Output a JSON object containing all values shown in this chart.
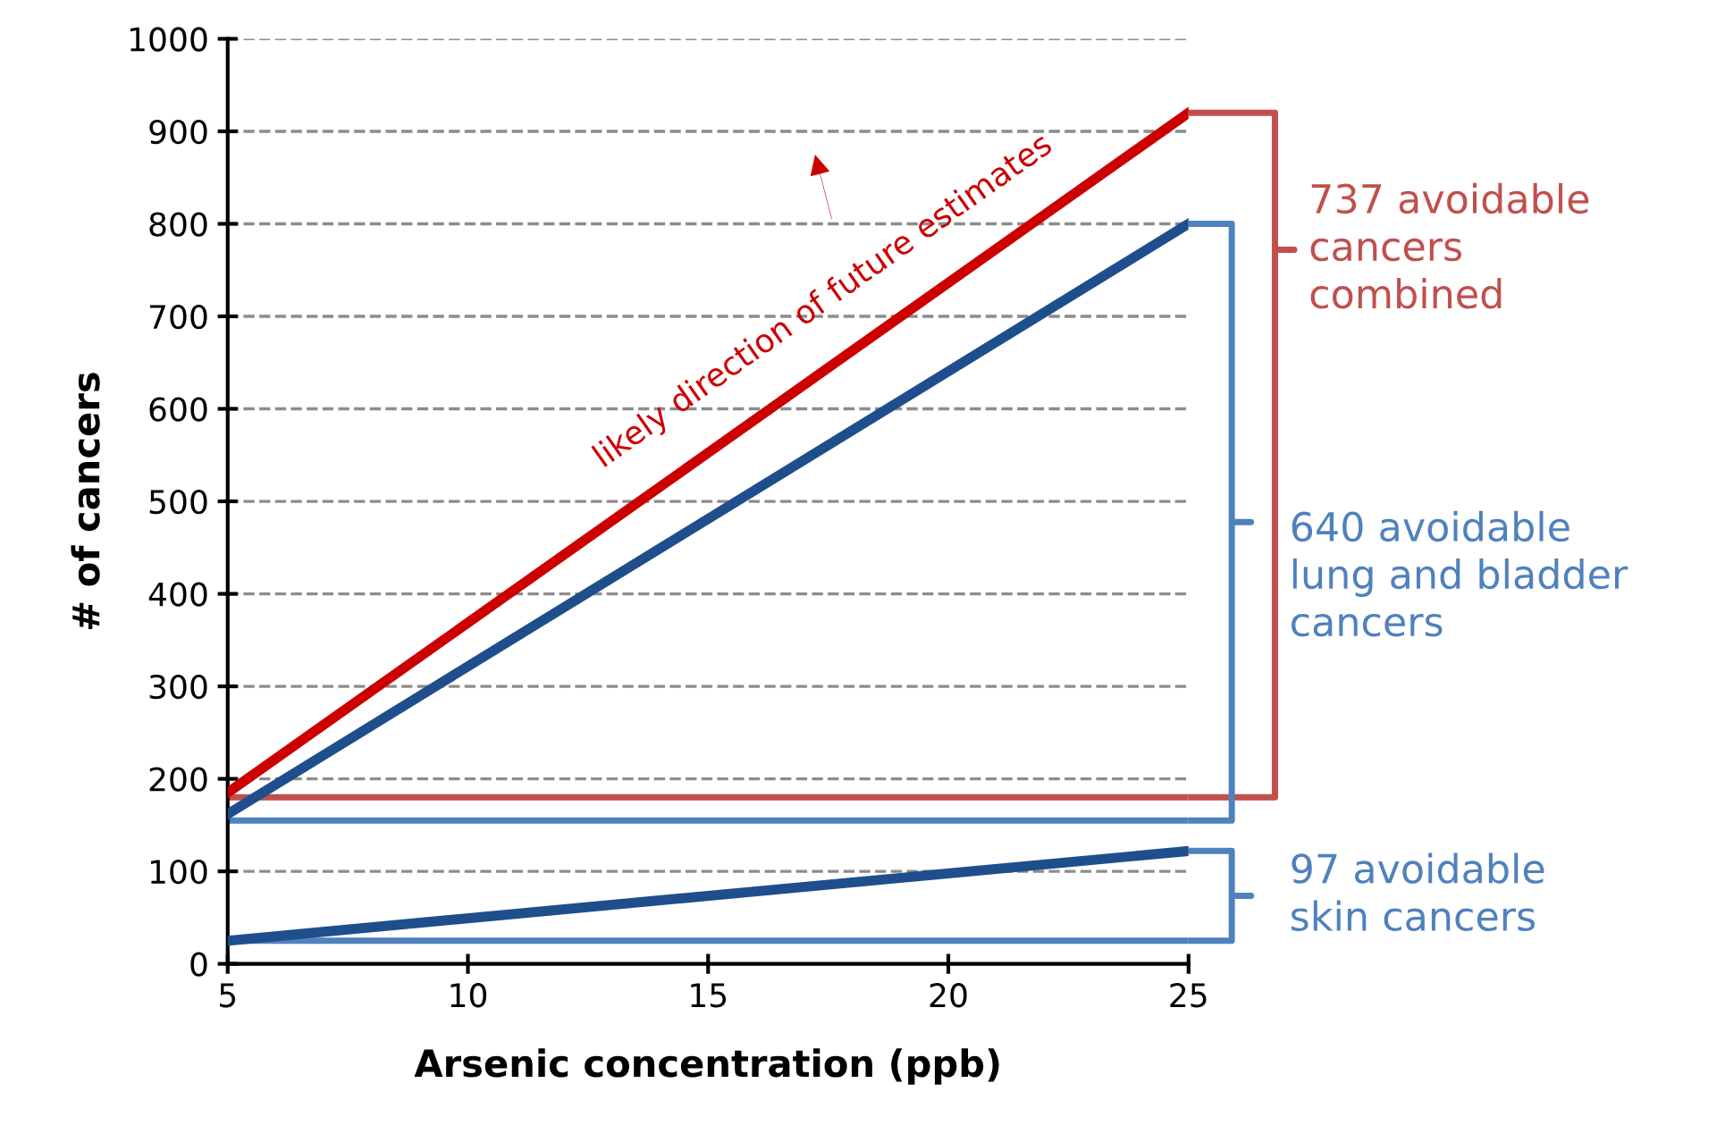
{
  "chart_data": {
    "type": "line",
    "xlabel": "Arsenic concentration (ppb)",
    "ylabel": "# of cancers",
    "xlim": [
      5,
      25
    ],
    "xticks": [
      5,
      10,
      15,
      20,
      25
    ],
    "ylim": [
      0,
      1000
    ],
    "yticks": [
      0,
      100,
      200,
      300,
      400,
      500,
      600,
      700,
      800,
      900,
      1000
    ],
    "grid": "y",
    "legend": false,
    "marker": "none",
    "line_style": "solid",
    "x": [
      5,
      25
    ],
    "series": [
      {
        "color": "#cc0000",
        "values": [
          185,
          920
        ]
      },
      {
        "color": "#1f4e8c",
        "values": [
          162,
          800
        ]
      },
      {
        "color": "#1f4e8c",
        "values": [
          25,
          122
        ]
      }
    ],
    "ref_lines": [
      {
        "axis": "y",
        "value": 180,
        "color": "#c0504d"
      },
      {
        "axis": "y",
        "value": 155,
        "color": "#4f81bd"
      },
      {
        "axis": "y",
        "value": 25,
        "color": "#4f81bd"
      }
    ],
    "annotations": [
      "likely direction of future estimates",
      "737 avoidable\ncancers\ncombined",
      "640 avoidable\nlung and bladder\ncancers",
      "97 avoidable\nskin cancers"
    ]
  }
}
